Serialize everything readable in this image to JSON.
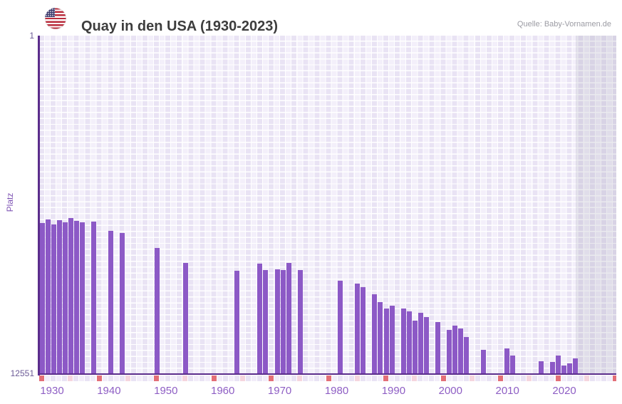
{
  "header": {
    "flag_icon": "usa-flag-icon"
  },
  "chart_data": {
    "type": "bar",
    "title": "Quay in den USA (1930-2023)",
    "source": "Quelle: Baby-Vornamen.de",
    "ylabel": "Platz",
    "y_axis": {
      "inverted": true,
      "min": 1,
      "max": 12551,
      "top_tick_label": "1",
      "bottom_tick_label": "12551"
    },
    "x_axis": {
      "start_year": 1930,
      "end_year": 2030,
      "last_data_year": 2023,
      "decade_tick_labels": [
        "1930",
        "1940",
        "1950",
        "1960",
        "1970",
        "1980",
        "1990",
        "2000",
        "2010",
        "2020"
      ]
    },
    "future_band": {
      "start_year": 2024,
      "end_year": 2030
    },
    "bars": [
      {
        "year": 1930,
        "rank": 6940
      },
      {
        "year": 1931,
        "rank": 6825
      },
      {
        "year": 1932,
        "rank": 7000
      },
      {
        "year": 1933,
        "rank": 6835
      },
      {
        "year": 1934,
        "rank": 6915
      },
      {
        "year": 1935,
        "rank": 6765
      },
      {
        "year": 1936,
        "rank": 6860
      },
      {
        "year": 1937,
        "rank": 6930
      },
      {
        "year": 1939,
        "rank": 6890
      },
      {
        "year": 1942,
        "rank": 7250
      },
      {
        "year": 1944,
        "rank": 7330
      },
      {
        "year": 1950,
        "rank": 7880
      },
      {
        "year": 1955,
        "rank": 8430
      },
      {
        "year": 1964,
        "rank": 8710
      },
      {
        "year": 1968,
        "rank": 8455
      },
      {
        "year": 1969,
        "rank": 8695
      },
      {
        "year": 1971,
        "rank": 8660
      },
      {
        "year": 1972,
        "rank": 8685
      },
      {
        "year": 1973,
        "rank": 8440
      },
      {
        "year": 1975,
        "rank": 8700
      },
      {
        "year": 1982,
        "rank": 9090
      },
      {
        "year": 1985,
        "rank": 9200
      },
      {
        "year": 1986,
        "rank": 9320
      },
      {
        "year": 1988,
        "rank": 9600
      },
      {
        "year": 1989,
        "rank": 9890
      },
      {
        "year": 1990,
        "rank": 10130
      },
      {
        "year": 1991,
        "rank": 10020
      },
      {
        "year": 1993,
        "rank": 10110
      },
      {
        "year": 1994,
        "rank": 10220
      },
      {
        "year": 1995,
        "rank": 10570
      },
      {
        "year": 1996,
        "rank": 10280
      },
      {
        "year": 1997,
        "rank": 10440
      },
      {
        "year": 1999,
        "rank": 10620
      },
      {
        "year": 2001,
        "rank": 10900
      },
      {
        "year": 2002,
        "rank": 10750
      },
      {
        "year": 2003,
        "rank": 10860
      },
      {
        "year": 2004,
        "rank": 11190
      },
      {
        "year": 2007,
        "rank": 11650
      },
      {
        "year": 2011,
        "rank": 11600
      },
      {
        "year": 2012,
        "rank": 11870
      },
      {
        "year": 2017,
        "rank": 12085
      },
      {
        "year": 2019,
        "rank": 12110
      },
      {
        "year": 2020,
        "rank": 11870
      },
      {
        "year": 2021,
        "rank": 12240
      },
      {
        "year": 2022,
        "rank": 12155
      },
      {
        "year": 2023,
        "rank": 11980
      }
    ],
    "colors": {
      "bar": "#8c59c6",
      "axis": "#5b2d8c",
      "decade_cell": "#e36f77",
      "half_decade_cell": "#f5d5de",
      "strip_cell_even": "#e9e3f4",
      "strip_cell_odd": "#f2edf9",
      "x_label": "#8e5ec4"
    }
  }
}
